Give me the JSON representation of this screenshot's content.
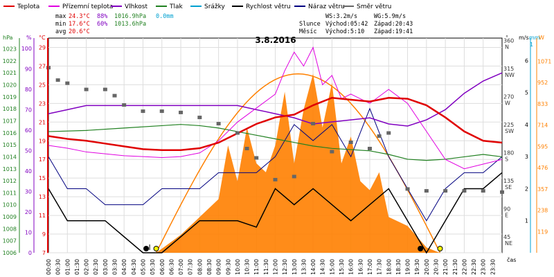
{
  "chart_data": {
    "type": "line",
    "title": "3.8.2016",
    "legend": [
      {
        "key": "teplota",
        "label": "Teplota",
        "color": "#e00000"
      },
      {
        "key": "prizemni",
        "label": "Přízemní teplota",
        "color": "#e000e0"
      },
      {
        "key": "vlhkost",
        "label": "Vlhkost",
        "color": "#8000c0"
      },
      {
        "key": "tlak",
        "label": "Tlak",
        "color": "#208020"
      },
      {
        "key": "srazky",
        "label": "Srážky",
        "color": "#00a0d0"
      },
      {
        "key": "rychlost",
        "label": "Rychlost větru",
        "color": "#000000"
      },
      {
        "key": "naraz",
        "label": "Náraz větru",
        "color": "#000080"
      },
      {
        "key": "smer",
        "label": "Směr větru",
        "color": "#666666"
      }
    ],
    "stats": {
      "max": {
        "label": "max",
        "temp": "24.3°C",
        "hum": "88%",
        "press": "1016.9hPa",
        "rain": "0.0mm"
      },
      "min": {
        "label": "min",
        "temp": "17.6°C",
        "hum": "60%",
        "press": "1013.6hPa"
      },
      "avg": {
        "label": "avg",
        "temp": "20.6°C"
      }
    },
    "info": {
      "ws": "WS:3.2m/s",
      "wg": "WG:5.9m/s",
      "sun_label": "Slunce",
      "sun_rise": "Východ:05:42",
      "sun_set": "Západ:20:43",
      "moon_label": "Měsíc",
      "moon_rise": "Východ:5:10",
      "moon_set": "Západ:19:41"
    },
    "axes": {
      "hpa": {
        "unit": "hPa",
        "ticks": [
          "1023",
          "1022",
          "1021",
          "1020",
          "1019",
          "1018",
          "1017",
          "1016",
          "1015",
          "1014",
          "1013",
          "1012",
          "1011",
          "1010",
          "1009",
          "1008",
          "1007",
          "1006"
        ]
      },
      "hum": {
        "unit": "%",
        "ticks": [
          "100",
          "90",
          "80",
          "70",
          "60",
          "50",
          "40",
          "30",
          "20",
          "10",
          "0"
        ]
      },
      "temp": {
        "unit": "°C",
        "ticks": [
          "29",
          "27",
          "25",
          "23",
          "21",
          "19",
          "17",
          "15",
          "13",
          "11",
          "9",
          "7"
        ]
      },
      "dir": {
        "unit": "°",
        "ticks": [
          "360",
          "315",
          "270",
          "225",
          "180",
          "135",
          "90",
          "45"
        ],
        "labels": [
          "N",
          "NW",
          "W",
          "SW",
          "S",
          "SE",
          "E",
          "NE"
        ]
      },
      "wind": {
        "unit": "m/s",
        "ticks": [
          "6",
          "5",
          "4",
          "3",
          "2",
          "1"
        ]
      },
      "mm": {
        "unit": "mm",
        "ticks": [
          "1"
        ]
      },
      "w": {
        "unit": "W",
        "ticks": [
          "1071",
          "952",
          "833",
          "714",
          "595",
          "476",
          "357",
          "238",
          "119"
        ]
      },
      "x": {
        "label": "čas",
        "ticks": [
          "00:00",
          "00:30",
          "01:00",
          "01:30",
          "02:00",
          "02:30",
          "03:00",
          "03:30",
          "04:00",
          "04:30",
          "05:00",
          "05:30",
          "06:00",
          "06:30",
          "07:00",
          "07:30",
          "08:00",
          "08:30",
          "09:00",
          "09:30",
          "10:00",
          "10:30",
          "11:00",
          "11:30",
          "12:00",
          "12:30",
          "13:00",
          "13:30",
          "14:00",
          "14:30",
          "15:00",
          "15:30",
          "16:00",
          "16:30",
          "17:00",
          "17:30",
          "18:00",
          "18:30",
          "19:00",
          "19:30",
          "20:00",
          "20:30",
          "21:00",
          "21:30",
          "22:00",
          "22:30",
          "23:00",
          "23:30"
        ]
      }
    },
    "series": {
      "teplota_x": [
        0,
        1,
        2,
        3,
        4,
        5,
        6,
        7,
        8,
        9,
        10,
        11,
        12,
        13,
        14,
        15,
        16,
        17,
        18,
        19,
        20,
        21,
        22,
        23,
        24
      ],
      "teplota": [
        19.5,
        19.2,
        19.0,
        18.7,
        18.4,
        18.1,
        18.0,
        18.0,
        18.2,
        18.8,
        19.8,
        20.8,
        21.5,
        21.8,
        22.8,
        23.6,
        23.4,
        23.2,
        23.6,
        23.5,
        22.8,
        21.5,
        20.0,
        19.0,
        18.8
      ],
      "prizemni_x": [
        0,
        1,
        2,
        3,
        4,
        5,
        6,
        7,
        8,
        9,
        10,
        11,
        12,
        12.5,
        13,
        13.5,
        14,
        14.5,
        15,
        15.5,
        16,
        17,
        18,
        19,
        20,
        21,
        22,
        23,
        24
      ],
      "prizemni": [
        18.5,
        18.2,
        17.8,
        17.6,
        17.4,
        17.3,
        17.2,
        17.3,
        17.7,
        19.0,
        21.0,
        22.5,
        24.0,
        26.5,
        28.5,
        27.0,
        29.0,
        25.0,
        26.0,
        23.5,
        24.0,
        23.0,
        24.5,
        23.0,
        20.0,
        17.0,
        16.0,
        16.5,
        17.0
      ],
      "vlhkost_x": [
        0,
        1,
        2,
        3,
        4,
        5,
        6,
        7,
        8,
        9,
        10,
        11,
        12,
        13,
        14,
        15,
        16,
        17,
        18,
        19,
        20,
        21,
        22,
        23,
        24
      ],
      "vlhkost": [
        68,
        70,
        72,
        72,
        72,
        72,
        72,
        72,
        72,
        72,
        72,
        70,
        68,
        66,
        63,
        64,
        65,
        66,
        63,
        62,
        65,
        70,
        78,
        84,
        88
      ],
      "tlak_x": [
        0,
        2,
        4,
        6,
        7,
        8,
        9,
        10,
        11,
        12,
        13,
        14,
        15,
        16,
        17,
        18,
        19,
        20,
        21,
        22,
        23,
        24
      ],
      "tlak": [
        1016.1,
        1016.2,
        1016.4,
        1016.6,
        1016.7,
        1016.6,
        1016.4,
        1016.1,
        1015.8,
        1015.5,
        1015.2,
        1014.9,
        1014.7,
        1014.6,
        1014.5,
        1014.2,
        1013.8,
        1013.7,
        1013.8,
        1014.0,
        1014.2,
        1014.0
      ],
      "smer_x": [
        0,
        0.5,
        1,
        2,
        3,
        3.5,
        4,
        5,
        6,
        7,
        8,
        9,
        10,
        10.5,
        11,
        12,
        13,
        14,
        15,
        16,
        17,
        17.5,
        18,
        19,
        20,
        21,
        22,
        23,
        24
      ],
      "smer": [
        320,
        300,
        295,
        285,
        285,
        275,
        260,
        250,
        250,
        248,
        240,
        230,
        215,
        190,
        175,
        140,
        145,
        230,
        185,
        200,
        190,
        210,
        215,
        125,
        122,
        122,
        122,
        122,
        120
      ],
      "wind_x": [
        0,
        1,
        2,
        3,
        4,
        5,
        6,
        7,
        8,
        9,
        10,
        11,
        12,
        13,
        14,
        15,
        16,
        17,
        18,
        19,
        20,
        21,
        22,
        23,
        24
      ],
      "wind": [
        2.0,
        1.0,
        1.0,
        1.0,
        0.5,
        0.0,
        0.0,
        0.5,
        1.0,
        1.0,
        1.0,
        0.8,
        2.0,
        1.5,
        2.0,
        1.5,
        1.0,
        1.5,
        2.0,
        1.0,
        0.0,
        1.0,
        2.0,
        2.0,
        2.5
      ],
      "naraz_x": [
        0,
        1,
        2,
        3,
        4,
        5,
        6,
        7,
        8,
        9,
        10,
        11,
        12,
        13,
        14,
        15,
        16,
        17,
        18,
        19,
        20,
        21,
        22,
        23,
        24
      ],
      "naraz": [
        3.0,
        2.0,
        2.0,
        1.5,
        1.5,
        1.5,
        2.0,
        2.0,
        2.0,
        2.5,
        2.5,
        2.5,
        3.0,
        4.0,
        3.5,
        4.0,
        3.0,
        4.5,
        3.0,
        2.0,
        1.0,
        2.0,
        2.5,
        2.5,
        3.0
      ],
      "solar_x": [
        5.7,
        7,
        8,
        9,
        9.5,
        10,
        10.5,
        11,
        11.5,
        12,
        12.5,
        13,
        13.5,
        14,
        14.5,
        15,
        15.5,
        16,
        16.5,
        17,
        17.5,
        18,
        19,
        20,
        20.7
      ],
      "solar": [
        0,
        100,
        200,
        300,
        600,
        400,
        700,
        500,
        450,
        600,
        900,
        500,
        800,
        1000,
        700,
        950,
        500,
        650,
        400,
        350,
        450,
        200,
        150,
        30,
        0
      ],
      "solar_theory_peak": 1000
    },
    "markers": {
      "sunrise": 5.7,
      "sunset": 20.72,
      "moonrise": 5.17,
      "moonset": 19.68
    }
  }
}
